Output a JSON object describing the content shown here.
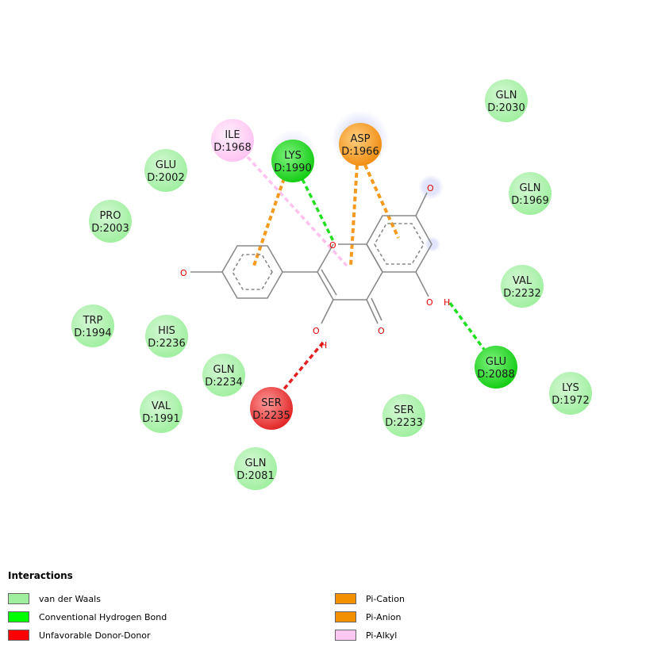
{
  "residues": [
    {
      "id": "GLN-D2030",
      "name": "GLN",
      "num": "D:2030",
      "type": "vdw"
    },
    {
      "id": "ILE-D1968",
      "name": "ILE",
      "num": "D:1968",
      "type": "pialkyl"
    },
    {
      "id": "LYS-D1990",
      "name": "LYS",
      "num": "D:1990",
      "type": "hbond"
    },
    {
      "id": "ASP-D1966",
      "name": "ASP",
      "num": "D:1966",
      "type": "pi"
    },
    {
      "id": "GLU-D2002",
      "name": "GLU",
      "num": "D:2002",
      "type": "vdw"
    },
    {
      "id": "GLN-D1969",
      "name": "GLN",
      "num": "D:1969",
      "type": "vdw"
    },
    {
      "id": "PRO-D2003",
      "name": "PRO",
      "num": "D:2003",
      "type": "vdw"
    },
    {
      "id": "VAL-D2232",
      "name": "VAL",
      "num": "D:2232",
      "type": "vdw"
    },
    {
      "id": "TRP-D1994",
      "name": "TRP",
      "num": "D:1994",
      "type": "vdw"
    },
    {
      "id": "HIS-D2236",
      "name": "HIS",
      "num": "D:2236",
      "type": "vdw"
    },
    {
      "id": "GLU-D2088",
      "name": "GLU",
      "num": "D:2088",
      "type": "hbond"
    },
    {
      "id": "GLN-D2234",
      "name": "GLN",
      "num": "D:2234",
      "type": "vdw"
    },
    {
      "id": "LYS-D1972",
      "name": "LYS",
      "num": "D:1972",
      "type": "vdw"
    },
    {
      "id": "VAL-D1991",
      "name": "VAL",
      "num": "D:1991",
      "type": "vdw"
    },
    {
      "id": "SER-D2235",
      "name": "SER",
      "num": "D:2235",
      "type": "unfav"
    },
    {
      "id": "SER-D2233",
      "name": "SER",
      "num": "D:2233",
      "type": "vdw"
    },
    {
      "id": "GLN-D2081",
      "name": "GLN",
      "num": "D:2081",
      "type": "vdw"
    }
  ],
  "interactions": [
    {
      "residue": "ILE-D1968",
      "type": "pialkyl"
    },
    {
      "residue": "LYS-D1990",
      "type": "hbond"
    },
    {
      "residue": "LYS-D1990",
      "type": "pi"
    },
    {
      "residue": "ASP-D1966",
      "type": "pi"
    },
    {
      "residue": "ASP-D1966",
      "type": "pi"
    },
    {
      "residue": "GLU-D2088",
      "type": "hbond"
    },
    {
      "residue": "SER-D2235",
      "type": "unfav"
    }
  ],
  "atoms": {
    "oxygen": "O",
    "hydrogen": "H"
  },
  "colors": {
    "vdw": "#9fef9f",
    "hbond": "#1fdc1f",
    "unfav": "#e53030",
    "pi": "#f59a1e",
    "pialkyl": "#ffcaf5",
    "oxygen": "#e00000",
    "bond": "#8a8a8a"
  },
  "legend": {
    "title": "Interactions",
    "items": [
      {
        "label": "van der Waals",
        "color": "#9fef9f"
      },
      {
        "label": "Conventional Hydrogen Bond",
        "color": "#00ff00"
      },
      {
        "label": "Unfavorable Donor-Donor",
        "color": "#ff0000"
      },
      {
        "label": "Pi-Cation",
        "color": "#f29000"
      },
      {
        "label": "Pi-Anion",
        "color": "#f29000"
      },
      {
        "label": "Pi-Alkyl",
        "color": "#ffc8f2"
      }
    ]
  }
}
